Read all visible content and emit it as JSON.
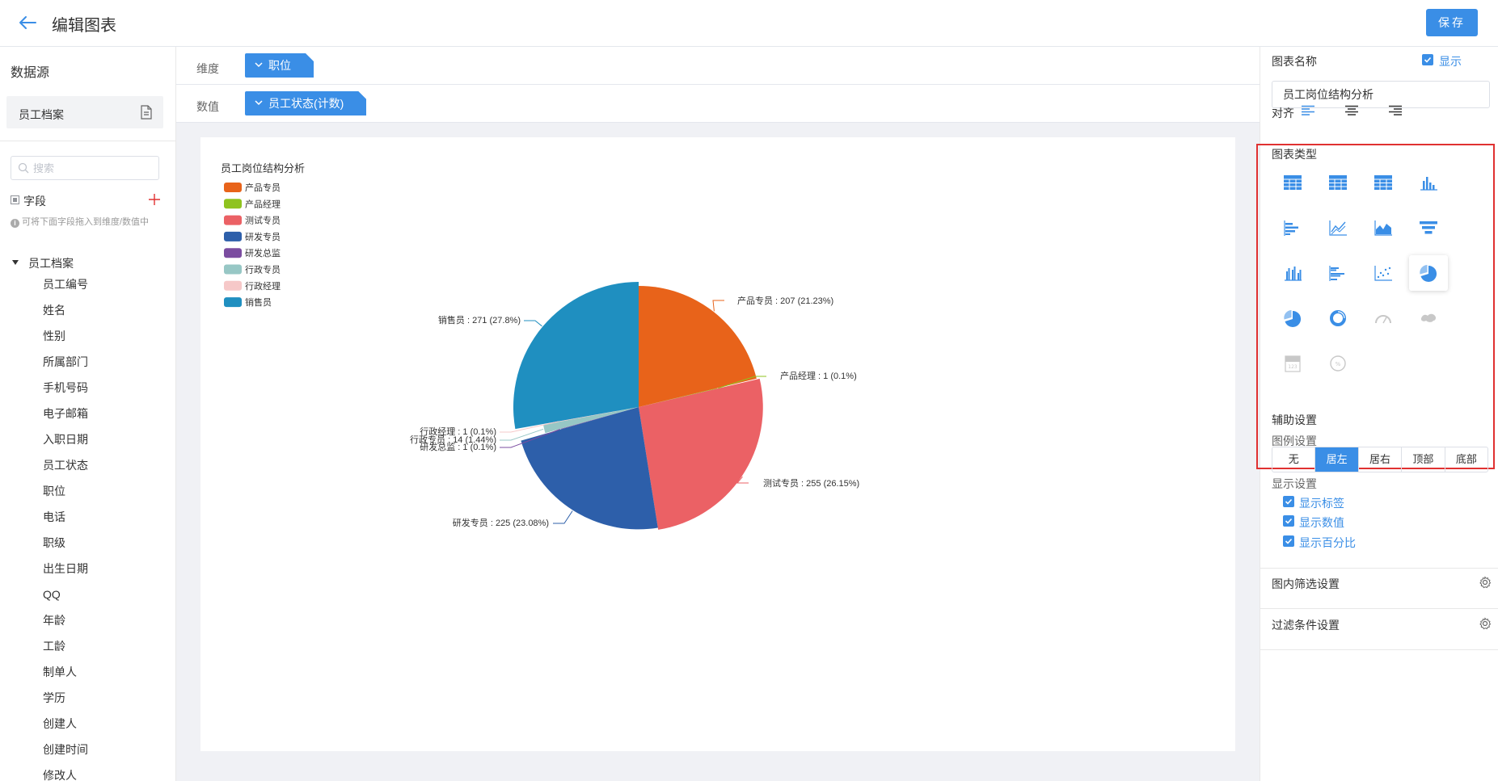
{
  "header": {
    "title": "编辑图表",
    "save_label": "保存"
  },
  "sidebar": {
    "datasource_title": "数据源",
    "datasource_item": "员工档案",
    "search_placeholder": "搜索",
    "field_title": "字段",
    "hint": "可将下面字段拖入到维度/数值中",
    "tree_root": "员工档案",
    "fields": [
      "员工编号",
      "姓名",
      "性别",
      "所属部门",
      "手机号码",
      "电子邮箱",
      "入职日期",
      "员工状态",
      "职位",
      "电话",
      "职级",
      "出生日期",
      "QQ",
      "年龄",
      "工龄",
      "制单人",
      "学历",
      "创建人",
      "创建时间",
      "修改人"
    ]
  },
  "toolbar": {
    "dimension_label": "维度",
    "dimension_value": "职位",
    "value_label": "数值",
    "value_value": "员工状态(计数)"
  },
  "chart_data": {
    "type": "pie",
    "title": "员工岗位结构分析",
    "legend_position": "left",
    "show_label": true,
    "show_value": true,
    "show_percent": true,
    "slices": [
      {
        "name": "产品专员",
        "value": 207,
        "percent": "21.23%",
        "color": "#e8631a"
      },
      {
        "name": "产品经理",
        "value": 1,
        "percent": "0.1%",
        "color": "#8fc31f"
      },
      {
        "name": "测试专员",
        "value": 255,
        "percent": "26.15%",
        "color": "#eb6165"
      },
      {
        "name": "研发专员",
        "value": 225,
        "percent": "23.08%",
        "color": "#2d5faa"
      },
      {
        "name": "研发总监",
        "value": 1,
        "percent": "0.1%",
        "color": "#7b4ca0"
      },
      {
        "name": "行政专员",
        "value": 14,
        "percent": "1.44%",
        "color": "#97c7c5"
      },
      {
        "name": "行政经理",
        "value": 1,
        "percent": "0.1%",
        "color": "#f6c8c8"
      },
      {
        "name": "销售员",
        "value": 271,
        "percent": "27.8%",
        "color": "#1f8fc0"
      }
    ],
    "labels": [
      "产品专员 : 207 (21.23%)",
      "产品经理 : 1 (0.1%)",
      "测试专员 : 255 (26.15%)",
      "研发专员 : 225 (23.08%)",
      "研发总监 : 1 (0.1%)",
      "行政专员 : 14 (1.44%)",
      "行政经理 : 1 (0.1%)",
      "销售员 : 271 (27.8%)"
    ]
  },
  "right_panel": {
    "chart_name_label": "图表名称",
    "show_label": "显示",
    "chart_name_value": "员工岗位结构分析",
    "align_label": "对齐",
    "chart_type_label": "图表类型",
    "chart_type_icons": [
      "table-icon",
      "table-icon",
      "table-icon",
      "bar-chart-icon",
      "horizontal-bar-icon",
      "line-chart-icon",
      "area-chart-icon",
      "funnel-icon",
      "grouped-bar-icon",
      "grouped-horizontal-bar-icon",
      "scatter-icon",
      "pie-chart-icon",
      "pie-chart-icon",
      "donut-chart-icon",
      "gauge-icon",
      "map-icon",
      "number-card-icon",
      "percent-dial-icon"
    ],
    "selected_chart_type": "pie-chart-icon",
    "aux_label": "辅助设置",
    "legend_settings_label": "图例设置",
    "legend_options": [
      "无",
      "居左",
      "居右",
      "顶部",
      "底部"
    ],
    "legend_selected": "居左",
    "display_settings_label": "显示设置",
    "display_options": [
      "显示标签",
      "显示数值",
      "显示百分比"
    ],
    "inner_filter_label": "图内筛选设置",
    "filter_condition_label": "过滤条件设置"
  },
  "colors": {
    "accent": "#3a8ee6",
    "highlight_border": "#e03131"
  }
}
